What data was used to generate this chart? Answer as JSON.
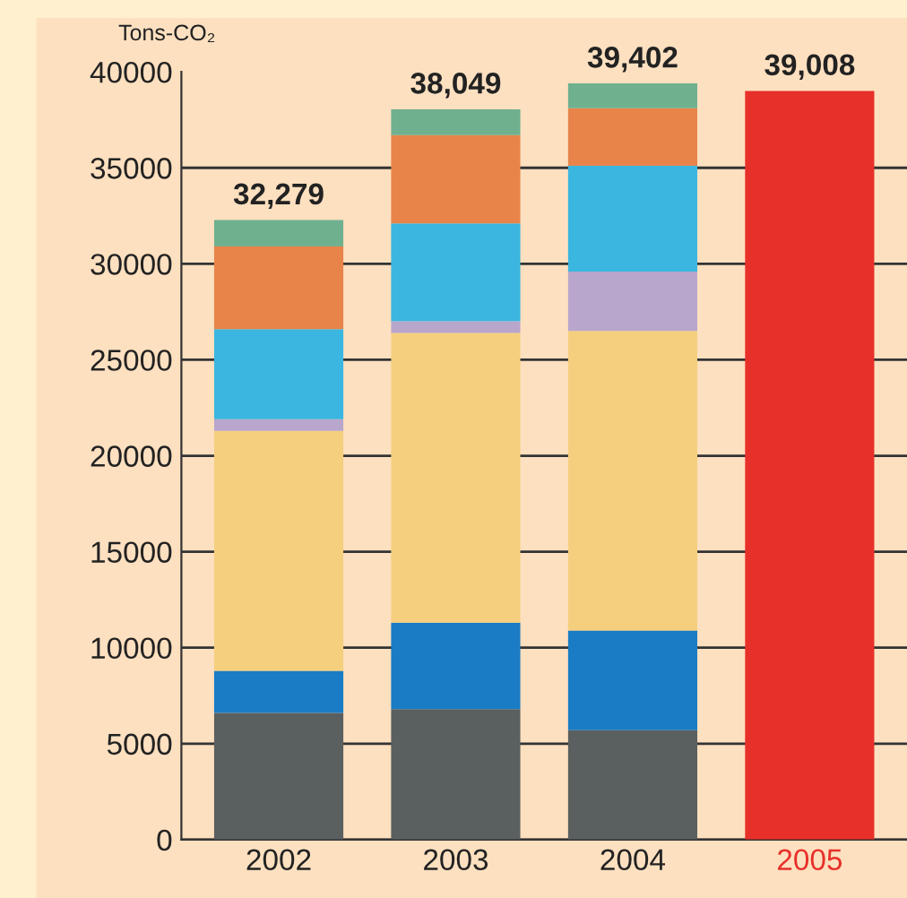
{
  "chart_data": {
    "type": "bar",
    "stacked": true,
    "ylabel": "Tons-CO₂",
    "categories": [
      "2002",
      "2003",
      "2004",
      "2005"
    ],
    "series": [
      {
        "color": "#5a5f5f",
        "values": [
          6600,
          6800,
          5700,
          null
        ]
      },
      {
        "color": "#1a7cc4",
        "values": [
          2200,
          4500,
          5200,
          null
        ]
      },
      {
        "color": "#f5cf7e",
        "values": [
          12500,
          15100,
          15600,
          null
        ]
      },
      {
        "color": "#b8a6cc",
        "values": [
          600,
          600,
          3100,
          null
        ]
      },
      {
        "color": "#3bb6e0",
        "values": [
          4700,
          5100,
          5500,
          null
        ]
      },
      {
        "color": "#e8844a",
        "values": [
          4300,
          4600,
          3000,
          null
        ]
      },
      {
        "color": "#6fb08f",
        "values": [
          1379,
          1349,
          1302,
          null
        ]
      },
      {
        "color": "#e8302a",
        "values": [
          null,
          null,
          null,
          39008
        ]
      }
    ],
    "totals": [
      "32,279",
      "38,049",
      "39,402",
      "39,008"
    ],
    "ylim": [
      0,
      40000
    ],
    "yticks": [
      0,
      5000,
      10000,
      15000,
      20000,
      25000,
      30000,
      35000,
      40000
    ],
    "grid": "y",
    "legend": false
  }
}
